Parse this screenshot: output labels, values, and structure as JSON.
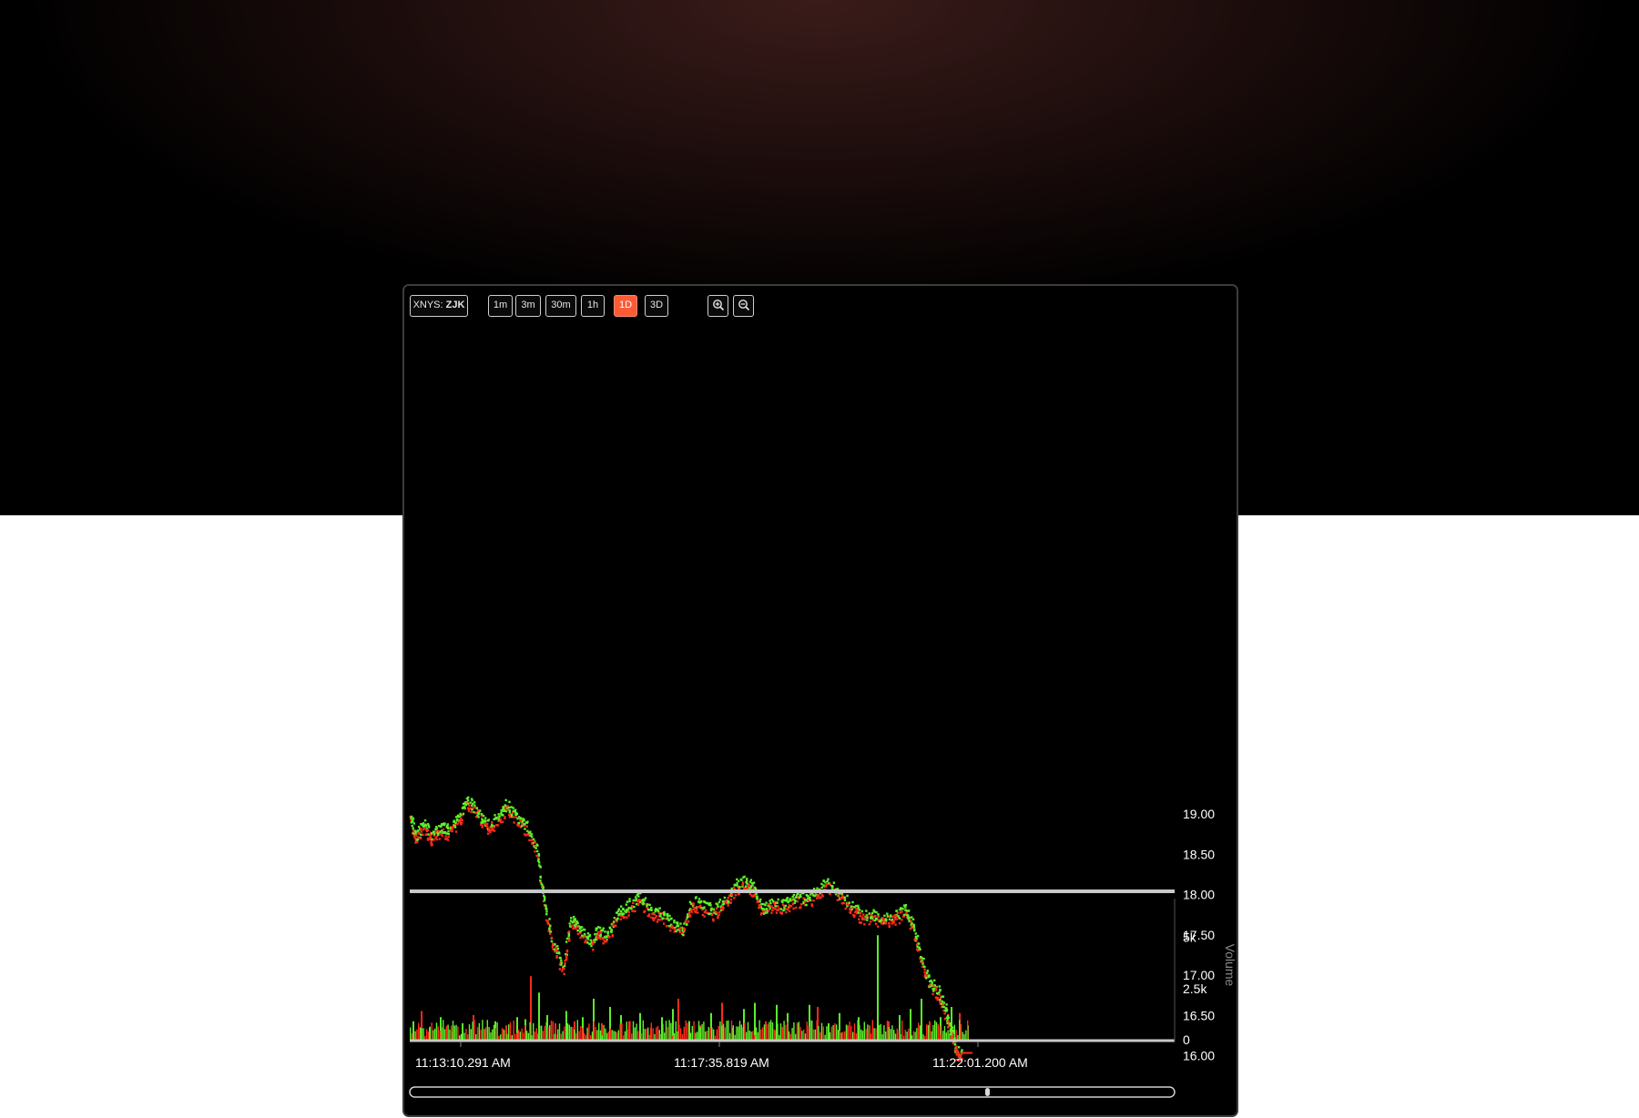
{
  "toolbar": {
    "symbol_exchange": "XNYS:",
    "symbol_ticker": "ZJK",
    "timeframes": [
      {
        "label": "1m",
        "active": false
      },
      {
        "label": "3m",
        "active": false
      },
      {
        "label": "30m",
        "active": false
      },
      {
        "label": "1h",
        "active": false
      },
      {
        "label": "1D",
        "active": true
      },
      {
        "label": "3D",
        "active": false
      }
    ],
    "zoom_in_icon": "zoom-in-icon",
    "zoom_out_icon": "zoom-out-icon"
  },
  "colors": {
    "up": "#5cf02a",
    "down": "#ff2a1a",
    "accent": "#ff5a36",
    "panel_bg": "#000000"
  },
  "chart_data": {
    "type": "scatter",
    "title": "",
    "price_axis": {
      "ticks": [
        "19.00",
        "18.50",
        "18.00",
        "17.50",
        "17.00",
        "16.50",
        "16.00"
      ],
      "values": [
        19.0,
        18.5,
        18.0,
        17.5,
        17.0,
        16.5,
        16.0
      ],
      "range": [
        15.9,
        19.3
      ]
    },
    "volume_axis": {
      "label": "Volume",
      "ticks": [
        "5k",
        "2.5k",
        "0"
      ],
      "values": [
        5000,
        2500,
        0
      ],
      "range": [
        0,
        6400
      ]
    },
    "time_axis": {
      "ticks": [
        "11:13:10.291 AM",
        "11:17:35.819 AM",
        "11:22:01.200 AM"
      ],
      "range": [
        "11:13:00 AM",
        "11:26:45 AM"
      ]
    },
    "price_series_path": [
      [
        0.0,
        18.95
      ],
      [
        0.2,
        18.7
      ],
      [
        0.5,
        18.85
      ],
      [
        0.8,
        18.72
      ],
      [
        1.1,
        18.82
      ],
      [
        1.4,
        18.78
      ],
      [
        1.8,
        18.95
      ],
      [
        2.1,
        19.15
      ],
      [
        2.5,
        19.0
      ],
      [
        2.8,
        18.85
      ],
      [
        3.2,
        18.92
      ],
      [
        3.5,
        19.1
      ],
      [
        3.9,
        18.95
      ],
      [
        4.2,
        18.85
      ],
      [
        4.6,
        18.6
      ],
      [
        4.9,
        17.9
      ],
      [
        5.2,
        17.4
      ],
      [
        5.6,
        17.1
      ],
      [
        5.9,
        17.7
      ],
      [
        6.2,
        17.55
      ],
      [
        6.6,
        17.4
      ],
      [
        6.9,
        17.55
      ],
      [
        7.2,
        17.45
      ],
      [
        7.6,
        17.75
      ],
      [
        8.0,
        17.85
      ],
      [
        8.4,
        17.95
      ],
      [
        8.8,
        17.8
      ],
      [
        9.2,
        17.75
      ],
      [
        9.6,
        17.6
      ],
      [
        10.0,
        17.55
      ],
      [
        10.3,
        17.9
      ],
      [
        10.7,
        17.85
      ],
      [
        11.1,
        17.78
      ],
      [
        11.5,
        17.9
      ],
      [
        11.9,
        18.1
      ],
      [
        12.3,
        18.15
      ],
      [
        12.6,
        18.05
      ],
      [
        12.9,
        17.8
      ],
      [
        13.3,
        17.9
      ],
      [
        13.7,
        17.85
      ],
      [
        14.1,
        17.95
      ],
      [
        14.5,
        17.92
      ],
      [
        14.9,
        18.05
      ],
      [
        15.3,
        18.12
      ],
      [
        15.7,
        18.0
      ],
      [
        16.1,
        17.85
      ],
      [
        16.5,
        17.75
      ],
      [
        16.9,
        17.72
      ],
      [
        17.3,
        17.7
      ],
      [
        17.7,
        17.72
      ],
      [
        18.1,
        17.8
      ],
      [
        18.4,
        17.6
      ],
      [
        18.7,
        17.2
      ],
      [
        19.0,
        16.9
      ],
      [
        19.3,
        16.8
      ],
      [
        19.6,
        16.55
      ],
      [
        19.8,
        16.3
      ],
      [
        20.0,
        16.05
      ],
      [
        20.3,
        16.0
      ],
      [
        20.6,
        16.0
      ]
    ],
    "volume_series": [
      [
        0.1,
        900,
        "up"
      ],
      [
        0.4,
        1400,
        "down"
      ],
      [
        0.7,
        600,
        "up"
      ],
      [
        1.1,
        1100,
        "up"
      ],
      [
        1.5,
        400,
        "down"
      ],
      [
        1.9,
        800,
        "up"
      ],
      [
        2.3,
        1200,
        "down"
      ],
      [
        2.7,
        500,
        "up"
      ],
      [
        3.1,
        900,
        "up"
      ],
      [
        3.5,
        700,
        "down"
      ],
      [
        3.9,
        1100,
        "up"
      ],
      [
        4.2,
        1000,
        "up"
      ],
      [
        4.4,
        3100,
        "down"
      ],
      [
        4.7,
        2300,
        "up"
      ],
      [
        5.0,
        1200,
        "up"
      ],
      [
        5.3,
        800,
        "down"
      ],
      [
        5.7,
        1400,
        "up"
      ],
      [
        6.0,
        900,
        "down"
      ],
      [
        6.3,
        1100,
        "up"
      ],
      [
        6.7,
        2000,
        "up"
      ],
      [
        7.0,
        800,
        "down"
      ],
      [
        7.3,
        1600,
        "up"
      ],
      [
        7.7,
        1200,
        "up"
      ],
      [
        8.0,
        900,
        "down"
      ],
      [
        8.4,
        1300,
        "up"
      ],
      [
        8.8,
        600,
        "down"
      ],
      [
        9.2,
        1100,
        "up"
      ],
      [
        9.6,
        1500,
        "up"
      ],
      [
        9.8,
        2000,
        "down"
      ],
      [
        10.2,
        900,
        "up"
      ],
      [
        10.6,
        700,
        "down"
      ],
      [
        11.0,
        1300,
        "up"
      ],
      [
        11.4,
        1800,
        "down"
      ],
      [
        11.8,
        600,
        "up"
      ],
      [
        12.2,
        1500,
        "up"
      ],
      [
        12.6,
        1800,
        "up"
      ],
      [
        13.0,
        900,
        "down"
      ],
      [
        13.4,
        1700,
        "up"
      ],
      [
        13.8,
        1300,
        "up"
      ],
      [
        14.2,
        800,
        "down"
      ],
      [
        14.6,
        1700,
        "up"
      ],
      [
        14.9,
        1600,
        "down"
      ],
      [
        15.3,
        800,
        "up"
      ],
      [
        15.7,
        1300,
        "up"
      ],
      [
        16.0,
        700,
        "down"
      ],
      [
        16.4,
        1100,
        "up"
      ],
      [
        16.8,
        700,
        "down"
      ],
      [
        17.1,
        5100,
        "up"
      ],
      [
        17.5,
        900,
        "down"
      ],
      [
        17.9,
        1200,
        "up"
      ],
      [
        18.3,
        1500,
        "up"
      ],
      [
        18.7,
        2000,
        "up"
      ],
      [
        19.0,
        900,
        "down"
      ],
      [
        19.4,
        1100,
        "up"
      ],
      [
        19.8,
        1600,
        "up"
      ],
      [
        20.1,
        1300,
        "down"
      ],
      [
        20.4,
        700,
        "up"
      ]
    ],
    "grid": false,
    "legend": "none"
  }
}
